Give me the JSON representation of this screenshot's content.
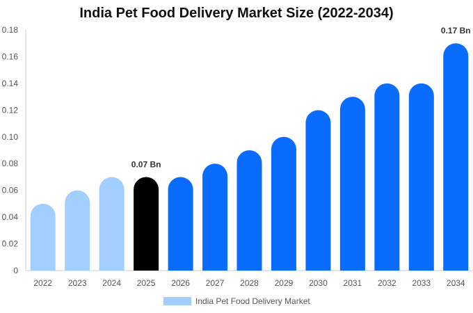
{
  "chart_data": {
    "type": "bar",
    "title": "India Pet Food Delivery Market Size (2022-2034)",
    "categories": [
      "2022",
      "2023",
      "2024",
      "2025",
      "2026",
      "2027",
      "2028",
      "2029",
      "2030",
      "2031",
      "2032",
      "2033",
      "2034"
    ],
    "series": [
      {
        "name": "India Pet Food Delivery Market",
        "values": [
          0.05,
          0.06,
          0.07,
          0.07,
          0.07,
          0.08,
          0.09,
          0.1,
          0.12,
          0.13,
          0.14,
          0.14,
          0.17
        ]
      }
    ],
    "bar_colors": [
      "#a3cfff",
      "#a3cfff",
      "#a3cfff",
      "#000000",
      "#0a6cff",
      "#0a6cff",
      "#0a6cff",
      "#0a6cff",
      "#0a6cff",
      "#0a6cff",
      "#0a6cff",
      "#0a6cff",
      "#0a6cff"
    ],
    "data_labels": [
      {
        "index": 3,
        "text": "0.07 Bn"
      },
      {
        "index": 12,
        "text": "0.17 Bn"
      }
    ],
    "y_ticks": [
      "0",
      "0.02",
      "0.04",
      "0.06",
      "0.08",
      "0.10",
      "0.12",
      "0.14",
      "0.16",
      "0.18"
    ],
    "ylim": [
      0,
      0.18
    ],
    "xlabel": "",
    "ylabel": "",
    "grid": false,
    "legend_position": "bottom-center",
    "legend_color": "#a3cfff"
  }
}
